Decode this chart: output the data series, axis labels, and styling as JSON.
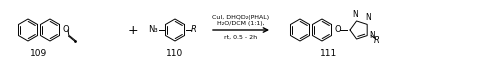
{
  "background": "#ffffff",
  "compound109_label": "109",
  "compound110_label": "110",
  "compound111_label": "111",
  "reagents_line1": "CuI, DHQD₂(PHAL)",
  "reagents_line2": "H₂O/DCM (1:1),",
  "reagents_line3": "rt, 0.5 - 2h",
  "plus_sign": "+",
  "lw": 0.7,
  "r_hex": 11,
  "fig_width": 5.0,
  "fig_height": 0.63,
  "dpi": 100
}
